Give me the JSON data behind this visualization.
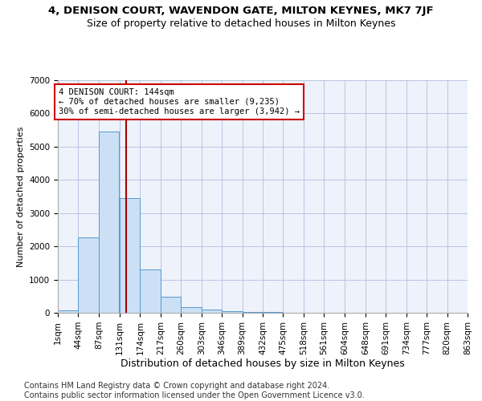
{
  "title": "4, DENISON COURT, WAVENDON GATE, MILTON KEYNES, MK7 7JF",
  "subtitle": "Size of property relative to detached houses in Milton Keynes",
  "xlabel": "Distribution of detached houses by size in Milton Keynes",
  "ylabel": "Number of detached properties",
  "bar_color": "#cce0f5",
  "bar_edge_color": "#5599cc",
  "background_color": "#eef2fb",
  "grid_color": "#b0bedd",
  "annotation_text": "4 DENISON COURT: 144sqm\n← 70% of detached houses are smaller (9,235)\n30% of semi-detached houses are larger (3,942) →",
  "annotation_box_color": "#cc0000",
  "vline_color": "#aa0000",
  "vline_x": 144,
  "bins_left": [
    1,
    44,
    87,
    131,
    174,
    217,
    260,
    303,
    346,
    389,
    432,
    475,
    518,
    561,
    604,
    648,
    691,
    734,
    777,
    820
  ],
  "bin_width": 43,
  "bar_heights": [
    80,
    2270,
    5450,
    3450,
    1300,
    480,
    180,
    100,
    60,
    30,
    15,
    10,
    5,
    3,
    2,
    1,
    1,
    0,
    0,
    0
  ],
  "ylim": [
    0,
    7000
  ],
  "yticks": [
    0,
    1000,
    2000,
    3000,
    4000,
    5000,
    6000,
    7000
  ],
  "xtick_labels": [
    "1sqm",
    "44sqm",
    "87sqm",
    "131sqm",
    "174sqm",
    "217sqm",
    "260sqm",
    "303sqm",
    "346sqm",
    "389sqm",
    "432sqm",
    "475sqm",
    "518sqm",
    "561sqm",
    "604sqm",
    "648sqm",
    "691sqm",
    "734sqm",
    "777sqm",
    "820sqm",
    "863sqm"
  ],
  "footer_text": "Contains HM Land Registry data © Crown copyright and database right 2024.\nContains public sector information licensed under the Open Government Licence v3.0.",
  "title_fontsize": 9.5,
  "subtitle_fontsize": 9,
  "xlabel_fontsize": 9,
  "ylabel_fontsize": 8,
  "tick_fontsize": 7.5,
  "footer_fontsize": 7
}
